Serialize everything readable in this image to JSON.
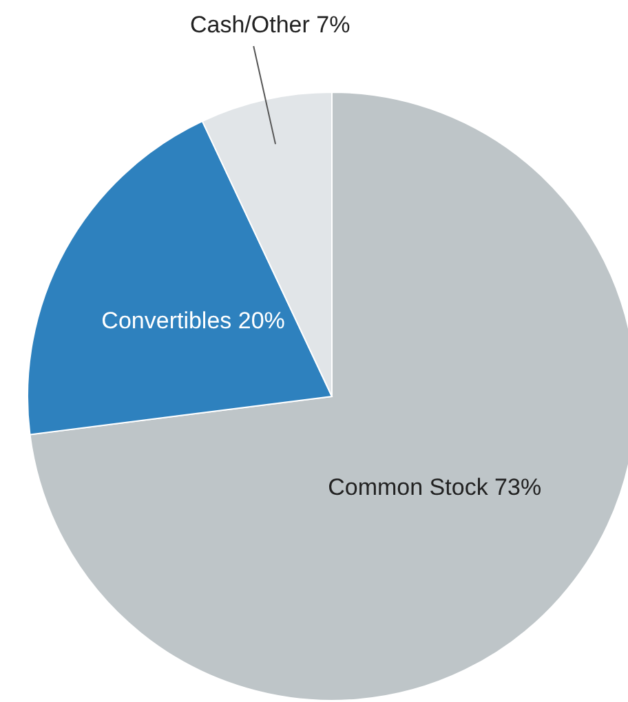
{
  "chart_data": {
    "type": "pie",
    "categories": [
      "Common Stock",
      "Convertibles",
      "Cash/Other"
    ],
    "values": [
      73,
      20,
      7
    ],
    "value_labels": [
      "73%",
      "20%",
      "7%"
    ],
    "colors": [
      "#bec5c8",
      "#2e81be",
      "#e1e5e8"
    ]
  }
}
